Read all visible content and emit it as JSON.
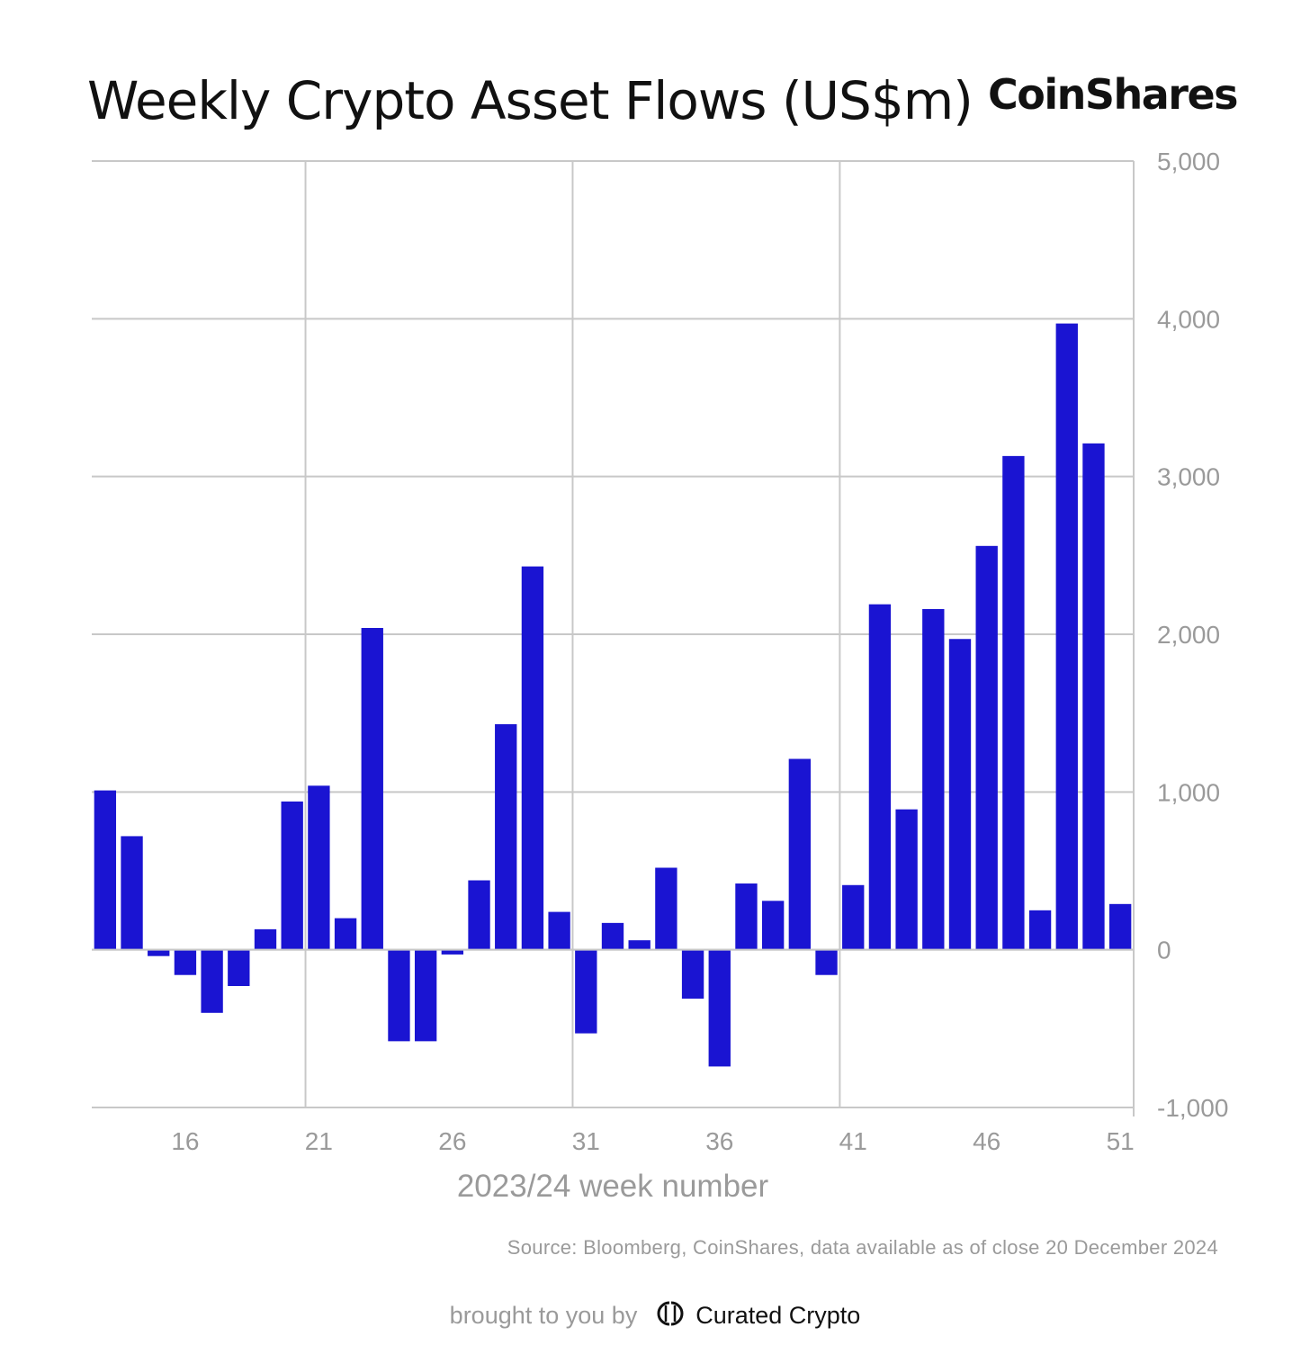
{
  "header": {
    "title": "Weekly Crypto Asset Flows (US$m)",
    "brand": "CoinShares"
  },
  "source": "Source: Bloomberg, CoinShares, data available as of close 20 December 2024",
  "footer": {
    "brought_by": "brought to you by",
    "brand": "Curated Crypto"
  },
  "colors": {
    "bar": "#1a14d2",
    "grid": "#c8c8c8",
    "axis_text": "#9a9a9a"
  },
  "chart_data": {
    "type": "bar",
    "title": "Weekly Crypto Asset Flows (US$m)",
    "xlabel": "2023/24 week number",
    "ylabel": "",
    "ylim": [
      -1000,
      5000
    ],
    "y_ticks": [
      5000,
      4000,
      3000,
      2000,
      1000,
      0,
      -1000
    ],
    "y_tick_labels": [
      "5,000",
      "4,000",
      "3,000",
      "2,000",
      "1,000",
      "0",
      "-1,000"
    ],
    "x_ticks": [
      16,
      21,
      26,
      31,
      36,
      41,
      46,
      51
    ],
    "x_tick_labels": [
      "16",
      "21",
      "26",
      "31",
      "36",
      "41",
      "46",
      "51"
    ],
    "x_range": [
      12.5,
      51.5
    ],
    "grid": "on",
    "categories": [
      13,
      14,
      15,
      16,
      17,
      18,
      19,
      20,
      21,
      22,
      23,
      24,
      25,
      26,
      27,
      28,
      29,
      30,
      31,
      32,
      33,
      34,
      35,
      36,
      37,
      38,
      39,
      40,
      41,
      42,
      43,
      44,
      45,
      46,
      47,
      48,
      49,
      50,
      51
    ],
    "values": [
      1010,
      720,
      -40,
      -160,
      -400,
      -230,
      130,
      940,
      1040,
      200,
      2040,
      -580,
      -580,
      -30,
      440,
      1430,
      2430,
      240,
      -530,
      170,
      60,
      520,
      -310,
      -740,
      420,
      310,
      1210,
      -160,
      410,
      2190,
      890,
      2160,
      1970,
      2560,
      3130,
      250,
      3970,
      3210,
      290
    ]
  }
}
